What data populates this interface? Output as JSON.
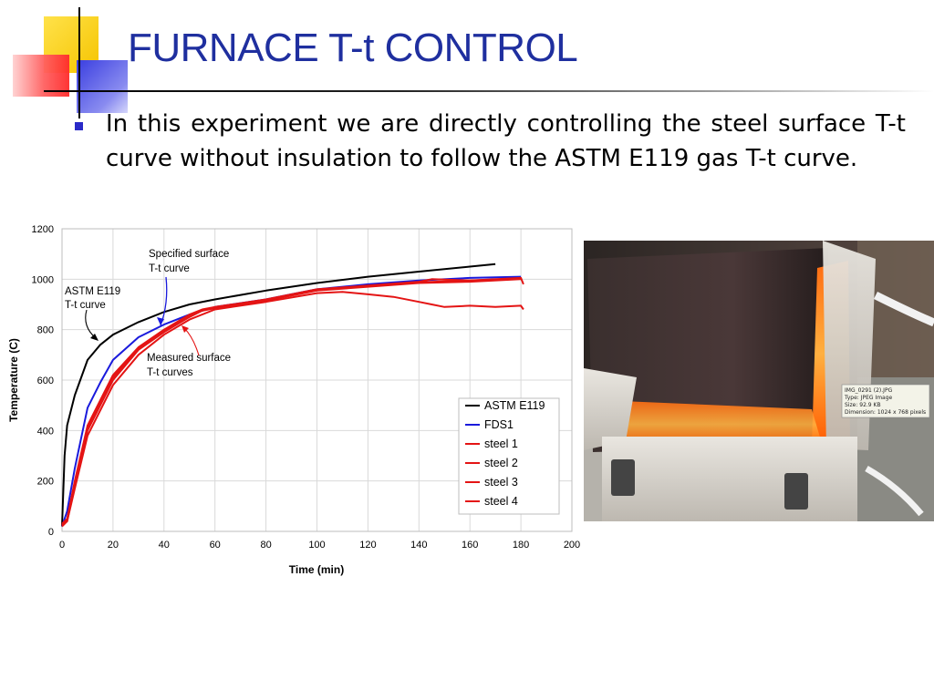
{
  "slide": {
    "title": "FURNACE T-t CONTROL",
    "bullet": "In this experiment we are directly controlling the steel surface T-t curve without insulation to follow the ASTM E119 gas T-t curve."
  },
  "colors": {
    "title": "#1f2f9f",
    "bullet": "#2a2ac8",
    "astm": "#000000",
    "fds": "#1a1adc",
    "steel": "#e41414"
  },
  "chart_data": {
    "type": "line",
    "xlabel": "Time (min)",
    "ylabel": "Temperature (C)",
    "xlim": [
      0,
      200
    ],
    "ylim": [
      0,
      1200
    ],
    "x_ticks": [
      0,
      20,
      40,
      60,
      80,
      100,
      120,
      140,
      160,
      180,
      200
    ],
    "y_ticks": [
      0,
      200,
      400,
      600,
      800,
      1000,
      1200
    ],
    "grid": true,
    "legend_position": "right",
    "annotations": {
      "specified": [
        "Specified surface",
        "T-t curve"
      ],
      "astm": [
        "ASTM E119",
        "T-t curve"
      ],
      "measured": [
        "Measured surface",
        "T-t curves"
      ]
    },
    "series": [
      {
        "name": "ASTM E119",
        "color": "#000000",
        "x": [
          0,
          1,
          2,
          5,
          10,
          15,
          20,
          30,
          40,
          50,
          60,
          80,
          100,
          120,
          140,
          160,
          170
        ],
        "y": [
          20,
          300,
          420,
          540,
          680,
          740,
          780,
          830,
          870,
          900,
          920,
          955,
          985,
          1010,
          1030,
          1050,
          1060
        ]
      },
      {
        "name": "FDS1",
        "color": "#1a1adc",
        "x": [
          0,
          2,
          5,
          10,
          15,
          20,
          30,
          40,
          50,
          60,
          70,
          80,
          90,
          100,
          120,
          140,
          160,
          180
        ],
        "y": [
          20,
          80,
          250,
          490,
          590,
          680,
          770,
          820,
          860,
          890,
          905,
          920,
          940,
          960,
          980,
          995,
          1005,
          1010
        ]
      },
      {
        "name": "steel 1",
        "color": "#e41414",
        "x": [
          0,
          2,
          5,
          10,
          20,
          30,
          40,
          50,
          55,
          60,
          80,
          100,
          120,
          140,
          145,
          160,
          180,
          181
        ],
        "y": [
          30,
          50,
          200,
          420,
          620,
          730,
          800,
          860,
          880,
          890,
          920,
          960,
          975,
          990,
          1000,
          995,
          1005,
          980
        ]
      },
      {
        "name": "steel 2",
        "color": "#e41414",
        "x": [
          0,
          2,
          5,
          10,
          20,
          30,
          40,
          50,
          55,
          60,
          80,
          100,
          120,
          140,
          160,
          180
        ],
        "y": [
          25,
          40,
          180,
          400,
          600,
          720,
          790,
          850,
          875,
          885,
          915,
          955,
          970,
          985,
          990,
          1000
        ]
      },
      {
        "name": "steel 3",
        "color": "#e41414",
        "x": [
          0,
          2,
          5,
          10,
          20,
          30,
          40,
          50,
          55,
          60,
          80,
          100,
          120,
          140,
          160,
          180
        ],
        "y": [
          25,
          45,
          190,
          410,
          610,
          725,
          795,
          855,
          878,
          888,
          918,
          958,
          972,
          988,
          995,
          1002
        ]
      },
      {
        "name": "steel 4",
        "color": "#e41414",
        "x": [
          0,
          2,
          5,
          10,
          20,
          30,
          40,
          50,
          60,
          80,
          100,
          110,
          120,
          130,
          140,
          145,
          150,
          160,
          170,
          180,
          181
        ],
        "y": [
          20,
          40,
          170,
          380,
          580,
          700,
          780,
          840,
          880,
          910,
          945,
          950,
          940,
          930,
          910,
          900,
          890,
          895,
          890,
          895,
          880
        ]
      }
    ]
  },
  "photo": {
    "info_lines": [
      "IMG_0291 (2).JPG",
      "Type: JPEG Image",
      "Size: 92.9 KB",
      "Dimension: 1024 x 768 pixels"
    ]
  }
}
